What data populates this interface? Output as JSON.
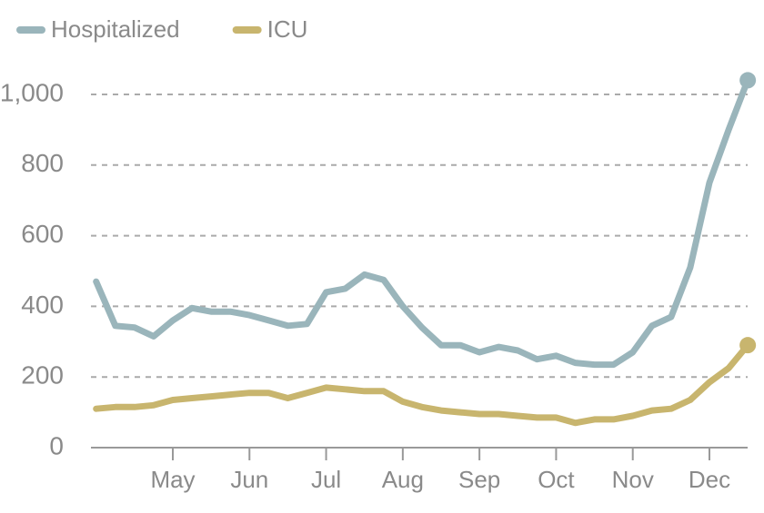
{
  "chart_data": {
    "type": "line",
    "categories": [
      null,
      null,
      null,
      null,
      "May",
      null,
      null,
      null,
      "Jun",
      null,
      null,
      null,
      "Jul",
      null,
      null,
      null,
      "Aug",
      null,
      null,
      null,
      "Sep",
      null,
      null,
      null,
      "Oct",
      null,
      null,
      null,
      "Nov",
      null,
      null,
      null,
      "Dec",
      null,
      null
    ],
    "series": [
      {
        "name": "Hospitalized",
        "color": "#9ab5bb",
        "values": [
          470,
          345,
          340,
          315,
          360,
          395,
          385,
          385,
          375,
          360,
          345,
          350,
          440,
          450,
          490,
          475,
          400,
          340,
          290,
          290,
          270,
          285,
          275,
          250,
          260,
          240,
          235,
          235,
          270,
          345,
          370,
          510,
          750,
          900,
          1040
        ]
      },
      {
        "name": "ICU",
        "color": "#c8b56e",
        "values": [
          110,
          115,
          115,
          120,
          135,
          140,
          145,
          150,
          155,
          155,
          140,
          155,
          170,
          165,
          160,
          160,
          130,
          115,
          105,
          100,
          95,
          95,
          90,
          85,
          85,
          70,
          80,
          80,
          90,
          105,
          110,
          135,
          185,
          225,
          290
        ]
      }
    ],
    "ylim": [
      0,
      1050
    ],
    "yticks": [
      0,
      200,
      400,
      600,
      800,
      {
        "value": 1000,
        "label": "1,000"
      }
    ],
    "grid": true,
    "legend": "top-left"
  }
}
